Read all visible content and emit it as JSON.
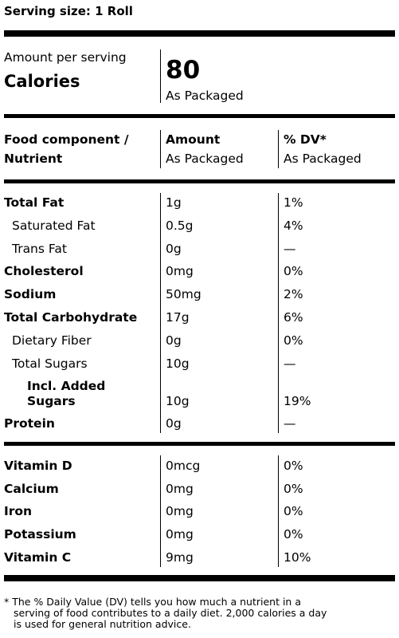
{
  "serving": {
    "text": "Serving size: 1 Roll"
  },
  "calories": {
    "amount_label": "Amount per serving",
    "label": "Calories",
    "value": "80",
    "sub": "As Packaged"
  },
  "header": {
    "col1_line1": "Food component /",
    "col1_line2": "Nutrient",
    "col2_line1": "Amount",
    "col2_line2": "As Packaged",
    "col3_line1": "% DV*",
    "col3_line2": "As Packaged"
  },
  "nutrients": [
    {
      "name": "Total Fat",
      "amount": "1g",
      "dv": "1%"
    },
    {
      "name": "Saturated Fat",
      "amount": "0.5g",
      "dv": "4%"
    },
    {
      "name": "Trans Fat",
      "amount": "0g",
      "dv": "—"
    },
    {
      "name": "Cholesterol",
      "amount": "0mg",
      "dv": "0%"
    },
    {
      "name": "Sodium",
      "amount": "50mg",
      "dv": "2%"
    },
    {
      "name": "Total Carbohydrate",
      "amount": "17g",
      "dv": "6%"
    },
    {
      "name": "Dietary Fiber",
      "amount": "0g",
      "dv": "0%"
    },
    {
      "name": "Total Sugars",
      "amount": "10g",
      "dv": "—"
    },
    {
      "name_line1": "Incl. Added",
      "name_line2": "Sugars",
      "amount": "10g",
      "dv": "19%"
    },
    {
      "name": "Protein",
      "amount": "0g",
      "dv": "—"
    }
  ],
  "vitamins": [
    {
      "name": "Vitamin D",
      "amount": "0mcg",
      "dv": "0%"
    },
    {
      "name": "Calcium",
      "amount": "0mg",
      "dv": "0%"
    },
    {
      "name": "Iron",
      "amount": "0mg",
      "dv": "0%"
    },
    {
      "name": "Potassium",
      "amount": "0mg",
      "dv": "0%"
    },
    {
      "name": "Vitamin C",
      "amount": "9mg",
      "dv": "10%"
    }
  ],
  "footnote": {
    "line1": "* The % Daily Value (DV) tells you how much a nutrient in a",
    "line2": "serving of food contributes to a daily diet. 2,000 calories a day",
    "line3": "is used for general nutrition advice."
  }
}
